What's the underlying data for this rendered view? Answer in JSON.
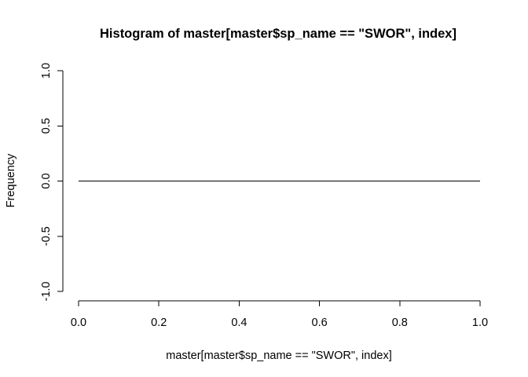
{
  "chart_data": {
    "type": "line",
    "title": "Histogram of master[master$sp_name == \"SWOR\", index]",
    "xlabel": "master[master$sp_name == \"SWOR\", index]",
    "ylabel": "Frequency",
    "xlim": [
      0.0,
      1.0
    ],
    "ylim": [
      -1.0,
      1.0
    ],
    "x_ticks": [
      "0.0",
      "0.2",
      "0.4",
      "0.6",
      "0.8",
      "1.0"
    ],
    "y_ticks": [
      "-1.0",
      "-0.5",
      "0.0",
      "0.5",
      "1.0"
    ],
    "grid": false,
    "series": [
      {
        "x": [
          0.0,
          1.0
        ],
        "y": [
          0,
          0
        ]
      }
    ],
    "colors": {
      "line": "#000000",
      "background": "#ffffff"
    }
  }
}
